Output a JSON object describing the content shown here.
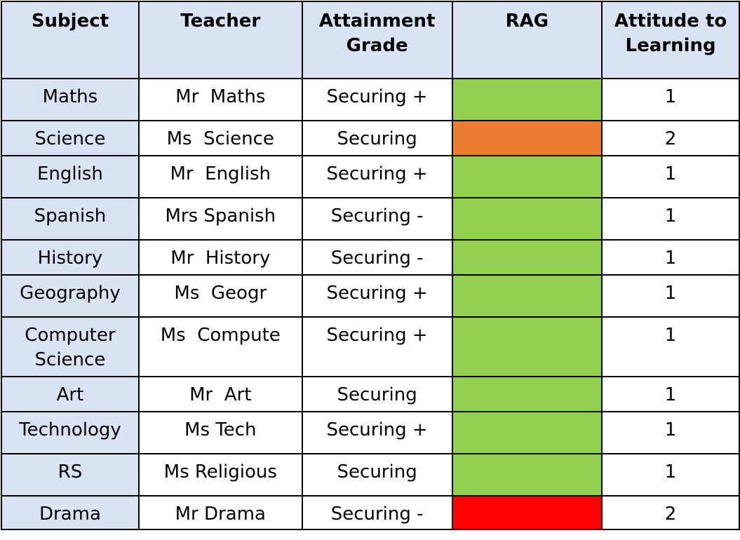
{
  "table": {
    "headers": {
      "subject": "Subject",
      "teacher": "Teacher",
      "grade": "Attainment Grade",
      "rag": "RAG",
      "attitude": "Attitude to Learning"
    },
    "rows": [
      {
        "subject": "Maths",
        "teacher": "Mr  Maths",
        "grade": "Securing +",
        "rag": "green",
        "attitude": "1"
      },
      {
        "subject": "Science",
        "teacher": "Ms  Science",
        "grade": "Securing",
        "rag": "amber",
        "attitude": "2"
      },
      {
        "subject": "English",
        "teacher": "Mr  English",
        "grade": "Securing +",
        "rag": "green",
        "attitude": "1"
      },
      {
        "subject": "Spanish",
        "teacher": "Mrs Spanish",
        "grade": "Securing -",
        "rag": "green",
        "attitude": "1"
      },
      {
        "subject": "History",
        "teacher": "Mr  History",
        "grade": "Securing -",
        "rag": "green",
        "attitude": "1"
      },
      {
        "subject": "Geography",
        "teacher": "Ms  Geogr",
        "grade": "Securing +",
        "rag": "green",
        "attitude": "1"
      },
      {
        "subject": "Computer Science",
        "teacher": "Ms  Compute",
        "grade": "Securing +",
        "rag": "green",
        "attitude": "1"
      },
      {
        "subject": "Art",
        "teacher": "Mr  Art",
        "grade": "Securing",
        "rag": "green",
        "attitude": "1"
      },
      {
        "subject": "Technology",
        "teacher": "Ms Tech",
        "grade": "Securing +",
        "rag": "green",
        "attitude": "1"
      },
      {
        "subject": "RS",
        "teacher": "Ms Religious",
        "grade": "Securing",
        "rag": "green",
        "attitude": "1"
      },
      {
        "subject": "Drama",
        "teacher": "Mr Drama",
        "grade": "Securing -",
        "rag": "red",
        "attitude": "2"
      }
    ]
  },
  "colors": {
    "header_bg": "#dae3f3",
    "subject_bg": "#dae3f3",
    "rag_green": "#92d050",
    "rag_amber": "#ed7d31",
    "rag_red": "#ff0000",
    "border": "#000000"
  }
}
